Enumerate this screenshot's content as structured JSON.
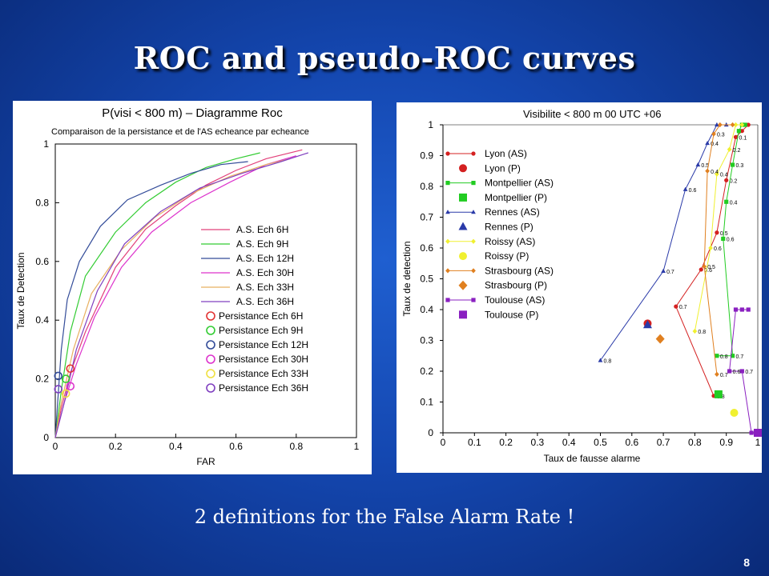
{
  "slide": {
    "title": "ROC and pseudo-ROC curves",
    "caption": "2 definitions for the False Alarm Rate !",
    "page_number": "8"
  },
  "chart_data": [
    {
      "type": "line",
      "title": "P(visi < 800 m) – Diagramme Roc",
      "subtitle": "Comparaison de la persistance et de l'AS echeance par echeance",
      "xlabel": "FAR",
      "ylabel": "Taux de Detection",
      "xlim": [
        0,
        1
      ],
      "ylim": [
        0,
        1
      ],
      "xticks": [
        "0",
        "0.2",
        "0.4",
        "0.6",
        "0.8",
        "1"
      ],
      "yticks": [
        "0",
        "0.2",
        "0.4",
        "0.6",
        "0.8",
        "1"
      ],
      "legend_placement": "bottom-right",
      "series": [
        {
          "name": "A.S. Ech 6H",
          "color": "#e2407a",
          "kind": "line",
          "x": [
            0,
            0.02,
            0.05,
            0.1,
            0.2,
            0.3,
            0.4,
            0.5,
            0.6,
            0.7,
            0.82
          ],
          "y": [
            0,
            0.1,
            0.22,
            0.36,
            0.58,
            0.71,
            0.79,
            0.86,
            0.91,
            0.95,
            0.98
          ]
        },
        {
          "name": "A.S. Ech 9H",
          "color": "#33cc33",
          "kind": "line",
          "x": [
            0,
            0.02,
            0.05,
            0.1,
            0.2,
            0.3,
            0.4,
            0.5,
            0.6,
            0.68
          ],
          "y": [
            0,
            0.16,
            0.36,
            0.55,
            0.7,
            0.8,
            0.87,
            0.92,
            0.95,
            0.97
          ]
        },
        {
          "name": "A.S. Ech 12H",
          "color": "#334c99",
          "kind": "line",
          "x": [
            0,
            0.02,
            0.04,
            0.08,
            0.15,
            0.24,
            0.35,
            0.45,
            0.55,
            0.64
          ],
          "y": [
            0,
            0.3,
            0.47,
            0.6,
            0.72,
            0.81,
            0.86,
            0.9,
            0.93,
            0.94
          ]
        },
        {
          "name": "A.S. Ech 30H",
          "color": "#dd33cc",
          "kind": "line",
          "x": [
            0,
            0.03,
            0.07,
            0.13,
            0.22,
            0.32,
            0.45,
            0.58,
            0.7,
            0.8
          ],
          "y": [
            0,
            0.12,
            0.25,
            0.41,
            0.58,
            0.7,
            0.8,
            0.87,
            0.93,
            0.96
          ]
        },
        {
          "name": "A.S. Ech 33H",
          "color": "#e8b060",
          "kind": "line",
          "x": [
            0,
            0.02,
            0.06,
            0.12,
            0.22,
            0.33,
            0.45,
            0.58,
            0.7,
            0.78
          ],
          "y": [
            0,
            0.12,
            0.3,
            0.49,
            0.64,
            0.75,
            0.83,
            0.89,
            0.93,
            0.95
          ]
        },
        {
          "name": "A.S. Ech 36H",
          "color": "#8040c0",
          "kind": "line",
          "x": [
            0,
            0.03,
            0.07,
            0.14,
            0.23,
            0.35,
            0.48,
            0.62,
            0.75,
            0.84
          ],
          "y": [
            0,
            0.12,
            0.3,
            0.5,
            0.66,
            0.77,
            0.85,
            0.9,
            0.94,
            0.97
          ]
        },
        {
          "name": "Persistance Ech 6H",
          "color": "#e23333",
          "kind": "point",
          "x": [
            0.05
          ],
          "y": [
            0.235
          ]
        },
        {
          "name": "Persistance Ech 9H",
          "color": "#33cc33",
          "kind": "point",
          "x": [
            0.035
          ],
          "y": [
            0.2
          ]
        },
        {
          "name": "Persistance Ech 12H",
          "color": "#334c99",
          "kind": "point",
          "x": [
            0.01
          ],
          "y": [
            0.21
          ]
        },
        {
          "name": "Persistance Ech 30H",
          "color": "#dd33cc",
          "kind": "point",
          "x": [
            0.05
          ],
          "y": [
            0.175
          ]
        },
        {
          "name": "Persistance Ech 33H",
          "color": "#f0e040",
          "kind": "point",
          "x": [
            0.035
          ],
          "y": [
            0.15
          ]
        },
        {
          "name": "Persistance Ech 36H",
          "color": "#8040c0",
          "kind": "point",
          "x": [
            0.01
          ],
          "y": [
            0.165
          ]
        }
      ]
    },
    {
      "type": "line",
      "title": "Visibilite < 800 m    00 UTC +06",
      "xlabel": "Taux de fausse alarme",
      "ylabel": "Taux de detection",
      "xlim": [
        0,
        1
      ],
      "ylim": [
        0,
        1
      ],
      "xticks": [
        "0",
        "0.1",
        "0.2",
        "0.3",
        "0.4",
        "0.5",
        "0.6",
        "0.7",
        "0.8",
        "0.9",
        "1"
      ],
      "yticks": [
        "0",
        "0.1",
        "0.2",
        "0.3",
        "0.4",
        "0.5",
        "0.6",
        "0.7",
        "0.8",
        "0.9",
        "1"
      ],
      "legend_placement": "top-left",
      "series": [
        {
          "name": "Lyon (AS)",
          "color": "#d42020",
          "marker": "circle",
          "kind": "line",
          "x": [
            0.86,
            0.74,
            0.82,
            0.87,
            0.9,
            0.93,
            0.95,
            0.97
          ],
          "y": [
            0.12,
            0.41,
            0.53,
            0.65,
            0.82,
            0.96,
            0.98,
            1.0
          ],
          "labels": [
            "0.8",
            "0.7",
            "0.6",
            "0.5",
            "0.2",
            "0.1",
            "",
            ""
          ]
        },
        {
          "name": "Lyon (P)",
          "color": "#d42020",
          "marker": "circle-big",
          "kind": "point",
          "x": [
            0.65
          ],
          "y": [
            0.355
          ]
        },
        {
          "name": "Montpellier (AS)",
          "color": "#22cc22",
          "marker": "square",
          "kind": "line",
          "x": [
            0.87,
            0.92,
            0.89,
            0.9,
            0.92,
            0.94,
            0.95,
            0.96
          ],
          "y": [
            0.25,
            0.25,
            0.63,
            0.75,
            0.87,
            0.98,
            1.0,
            1.0
          ],
          "labels": [
            "0.8",
            "0.7",
            "0.6",
            "0.4",
            "0.3",
            "",
            "",
            ""
          ]
        },
        {
          "name": "Montpellier (P)",
          "color": "#22cc22",
          "marker": "square-big",
          "kind": "point",
          "x": [
            0.875
          ],
          "y": [
            0.125
          ]
        },
        {
          "name": "Rennes (AS)",
          "color": "#2a3aa8",
          "marker": "triangle",
          "kind": "line",
          "x": [
            0.5,
            0.7,
            0.77,
            0.81,
            0.84,
            0.87,
            0.9
          ],
          "y": [
            0.235,
            0.525,
            0.79,
            0.87,
            0.94,
            1.0,
            1.0
          ],
          "labels": [
            "0.8",
            "0.7",
            "0.6",
            "0.5",
            "0.4",
            "",
            ""
          ]
        },
        {
          "name": "Rennes (P)",
          "color": "#2a3aa8",
          "marker": "triangle-big",
          "kind": "point",
          "x": [
            0.65
          ],
          "y": [
            0.35
          ]
        },
        {
          "name": "Roissy (AS)",
          "color": "#f0f030",
          "marker": "diamond",
          "kind": "line",
          "x": [
            0.8,
            0.85,
            0.87,
            0.91,
            0.93,
            0.95
          ],
          "y": [
            0.33,
            0.6,
            0.84,
            0.92,
            1.0,
            1.0
          ],
          "labels": [
            "0.8",
            "0.6",
            "0.4",
            "0.2",
            "",
            ""
          ]
        },
        {
          "name": "Roissy (P)",
          "color": "#f0f030",
          "marker": "circle-big",
          "kind": "point",
          "x": [
            0.925
          ],
          "y": [
            0.065
          ]
        },
        {
          "name": "Strasbourg (AS)",
          "color": "#e08020",
          "marker": "diamond",
          "kind": "line",
          "x": [
            0.87,
            0.83,
            0.84,
            0.86,
            0.88,
            0.92
          ],
          "y": [
            0.19,
            0.54,
            0.85,
            0.97,
            1.0,
            1.0
          ],
          "labels": [
            "0.7",
            "0.5",
            "0.4",
            "0.3",
            "",
            ""
          ]
        },
        {
          "name": "Strasbourg (P)",
          "color": "#e08020",
          "marker": "diamond-big",
          "kind": "point",
          "x": [
            0.69
          ],
          "y": [
            0.305
          ]
        },
        {
          "name": "Toulouse (AS)",
          "color": "#8a20c0",
          "marker": "square",
          "kind": "line",
          "x": [
            0.98,
            0.95,
            0.91,
            0.93,
            0.95,
            0.97
          ],
          "y": [
            0.0,
            0.2,
            0.2,
            0.4,
            0.4,
            0.4
          ],
          "labels": [
            "",
            "0.7",
            "0.6",
            "",
            "",
            ""
          ]
        },
        {
          "name": "Toulouse (P)",
          "color": "#8a20c0",
          "marker": "square-big",
          "kind": "point",
          "x": [
            1.0
          ],
          "y": [
            0.0
          ]
        }
      ]
    }
  ]
}
